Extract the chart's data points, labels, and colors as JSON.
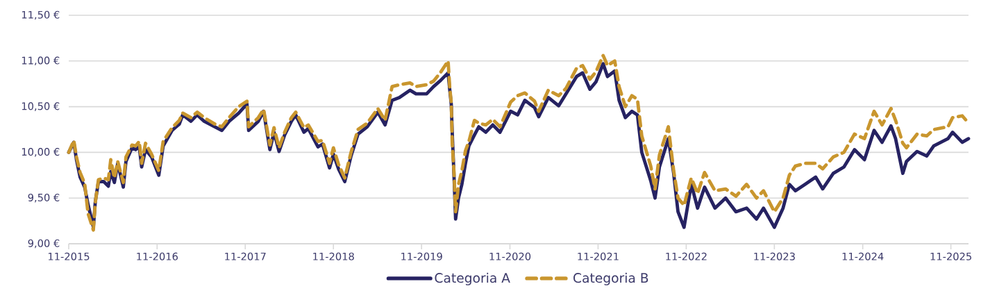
{
  "chart_data": {
    "type": "line",
    "x": [
      "2015-11-01",
      "2015-11-22",
      "2015-12-03",
      "2015-12-18",
      "2016-01-06",
      "2016-01-20",
      "2016-02-11",
      "2016-02-19",
      "2016-03-03",
      "2016-03-25",
      "2016-04-13",
      "2016-04-23",
      "2016-05-08",
      "2016-05-22",
      "2016-06-14",
      "2016-06-25",
      "2016-07-20",
      "2016-08-04",
      "2016-08-19",
      "2016-08-29",
      "2016-09-14",
      "2016-10-09",
      "2016-11-08",
      "2016-11-26",
      "2017-01-02",
      "2017-02-01",
      "2017-02-15",
      "2017-03-21",
      "2017-04-16",
      "2017-05-15",
      "2017-06-28",
      "2017-07-27",
      "2017-08-26",
      "2017-10-05",
      "2017-11-08",
      "2017-11-15",
      "2017-12-25",
      "2018-01-16",
      "2018-02-11",
      "2018-02-28",
      "2018-03-21",
      "2018-04-13",
      "2018-05-11",
      "2018-05-29",
      "2018-07-02",
      "2018-07-20",
      "2018-08-29",
      "2018-09-17",
      "2018-10-16",
      "2018-11-01",
      "2018-11-22",
      "2018-12-18",
      "2019-01-13",
      "2019-02-11",
      "2019-03-21",
      "2019-05-04",
      "2019-06-03",
      "2019-07-02",
      "2019-08-01",
      "2019-09-14",
      "2019-10-09",
      "2019-11-22",
      "2019-12-21",
      "2020-01-20",
      "2020-02-19",
      "2020-02-26",
      "2020-03-03",
      "2020-03-07",
      "2020-03-14",
      "2020-03-21",
      "2020-04-02",
      "2020-04-16",
      "2020-05-01",
      "2020-05-15",
      "2020-06-07",
      "2020-06-25",
      "2020-07-24",
      "2020-08-22",
      "2020-09-21",
      "2020-11-04",
      "2020-12-03",
      "2021-01-02",
      "2021-02-11",
      "2021-02-28",
      "2021-04-09",
      "2021-05-22",
      "2021-06-21",
      "2021-08-04",
      "2021-08-29",
      "2021-09-28",
      "2021-10-23",
      "2021-11-22",
      "2021-12-10",
      "2022-01-09",
      "2022-01-27",
      "2022-02-22",
      "2022-03-21",
      "2022-04-13",
      "2022-05-01",
      "2022-06-07",
      "2022-06-25",
      "2022-07-13",
      "2022-08-19",
      "2022-09-10",
      "2022-09-28",
      "2022-10-23",
      "2022-11-22",
      "2022-12-18",
      "2023-01-16",
      "2023-02-28",
      "2023-04-13",
      "2023-05-26",
      "2023-07-09",
      "2023-08-19",
      "2023-09-17",
      "2023-11-01",
      "2023-12-07",
      "2024-01-02",
      "2024-01-27",
      "2024-03-07",
      "2024-04-20",
      "2024-05-19",
      "2024-07-02",
      "2024-08-15",
      "2024-09-28",
      "2024-11-08",
      "2024-12-18",
      "2025-01-20",
      "2025-02-26",
      "2025-03-17",
      "2025-04-16",
      "2025-05-01",
      "2025-06-14",
      "2025-07-24",
      "2025-08-22",
      "2025-10-20",
      "2025-11-08",
      "2025-12-18",
      "2026-01-13"
    ],
    "series": [
      {
        "name": "Categoria A",
        "color": "#262262",
        "line_style": "solid",
        "values": [
          10.0,
          10.11,
          9.92,
          9.73,
          9.62,
          9.43,
          9.18,
          9.46,
          9.68,
          9.68,
          9.63,
          9.79,
          9.67,
          9.88,
          9.62,
          9.9,
          10.05,
          10.03,
          10.06,
          9.84,
          10.03,
          9.95,
          9.75,
          10.07,
          10.24,
          10.31,
          10.41,
          10.34,
          10.41,
          10.34,
          10.28,
          10.24,
          10.34,
          10.43,
          10.53,
          10.24,
          10.34,
          10.45,
          10.03,
          10.22,
          10.01,
          10.19,
          10.34,
          10.41,
          10.22,
          10.26,
          10.06,
          10.09,
          9.83,
          9.98,
          9.82,
          9.68,
          9.96,
          10.2,
          10.28,
          10.44,
          10.3,
          10.57,
          10.6,
          10.68,
          10.64,
          10.64,
          10.72,
          10.79,
          10.87,
          10.68,
          10.53,
          10.22,
          9.77,
          9.27,
          9.5,
          9.65,
          9.88,
          10.07,
          10.19,
          10.28,
          10.22,
          10.3,
          10.22,
          10.45,
          10.41,
          10.57,
          10.49,
          10.39,
          10.6,
          10.51,
          10.64,
          10.83,
          10.87,
          10.69,
          10.77,
          10.97,
          10.83,
          10.89,
          10.57,
          10.38,
          10.45,
          10.41,
          10.0,
          9.69,
          9.5,
          9.84,
          10.15,
          9.77,
          9.35,
          9.18,
          9.65,
          9.39,
          9.62,
          9.39,
          9.5,
          9.35,
          9.39,
          9.27,
          9.39,
          9.18,
          9.39,
          9.65,
          9.58,
          9.65,
          9.73,
          9.6,
          9.77,
          9.84,
          10.03,
          9.92,
          10.24,
          10.11,
          10.29,
          10.15,
          9.77,
          9.9,
          10.01,
          9.96,
          10.07,
          10.15,
          10.22,
          10.11,
          10.15
        ]
      },
      {
        "name": "Categoria B",
        "color": "#c9962e",
        "line_style": "dashed",
        "values": [
          10.0,
          10.13,
          9.95,
          9.78,
          9.66,
          9.33,
          9.15,
          9.45,
          9.7,
          9.72,
          9.7,
          9.92,
          9.72,
          9.9,
          9.67,
          9.95,
          10.08,
          10.07,
          10.12,
          9.88,
          10.1,
          9.98,
          9.8,
          10.12,
          10.27,
          10.35,
          10.43,
          10.38,
          10.44,
          10.38,
          10.31,
          10.28,
          10.38,
          10.5,
          10.56,
          10.28,
          10.38,
          10.47,
          10.08,
          10.27,
          10.05,
          10.22,
          10.38,
          10.44,
          10.27,
          10.3,
          10.12,
          10.13,
          9.88,
          10.05,
          9.87,
          9.72,
          10.0,
          10.25,
          10.32,
          10.48,
          10.35,
          10.72,
          10.74,
          10.76,
          10.72,
          10.74,
          10.78,
          10.88,
          11.0,
          10.7,
          10.55,
          10.1,
          9.8,
          9.35,
          9.65,
          9.8,
          10.02,
          10.12,
          10.35,
          10.32,
          10.3,
          10.36,
          10.28,
          10.55,
          10.62,
          10.65,
          10.56,
          10.45,
          10.68,
          10.62,
          10.7,
          10.92,
          10.95,
          10.8,
          10.88,
          11.06,
          10.95,
          11.0,
          10.72,
          10.5,
          10.62,
          10.58,
          10.18,
          9.85,
          9.6,
          9.97,
          10.28,
          9.8,
          9.5,
          9.42,
          9.72,
          9.55,
          9.78,
          9.58,
          9.6,
          9.52,
          9.65,
          9.5,
          9.58,
          9.35,
          9.5,
          9.75,
          9.85,
          9.88,
          9.88,
          9.82,
          9.95,
          10.0,
          10.2,
          10.15,
          10.45,
          10.3,
          10.48,
          10.35,
          10.1,
          10.05,
          10.2,
          10.18,
          10.25,
          10.28,
          10.38,
          10.4,
          10.32
        ]
      }
    ],
    "xlim": [
      "2015-11-01",
      "2026-01-13"
    ],
    "xticks": [
      {
        "value": "2015-11",
        "label": "11-2015"
      },
      {
        "value": "2016-11",
        "label": "11-2016"
      },
      {
        "value": "2017-11",
        "label": "11-2017"
      },
      {
        "value": "2018-11",
        "label": "11-2018"
      },
      {
        "value": "2019-11",
        "label": "11-2019"
      },
      {
        "value": "2020-11",
        "label": "11-2020"
      },
      {
        "value": "2021-11",
        "label": "11-2021"
      },
      {
        "value": "2022-11",
        "label": "11-2022"
      },
      {
        "value": "2023-11",
        "label": "11-2023"
      },
      {
        "value": "2024-11",
        "label": "11-2024"
      },
      {
        "value": "2025-11",
        "label": "11-2025"
      }
    ],
    "ylim": [
      9.0,
      11.5
    ],
    "yticks": [
      {
        "value": 9.0,
        "label": "9,00 €"
      },
      {
        "value": 9.5,
        "label": "9,50 €"
      },
      {
        "value": 10.0,
        "label": "10,00 €"
      },
      {
        "value": 10.5,
        "label": "10,50 €"
      },
      {
        "value": 11.0,
        "label": "11,00 €"
      },
      {
        "value": 11.5,
        "label": "11,50 €"
      }
    ],
    "grid": "y",
    "legend": "bottom",
    "marker": "none"
  }
}
